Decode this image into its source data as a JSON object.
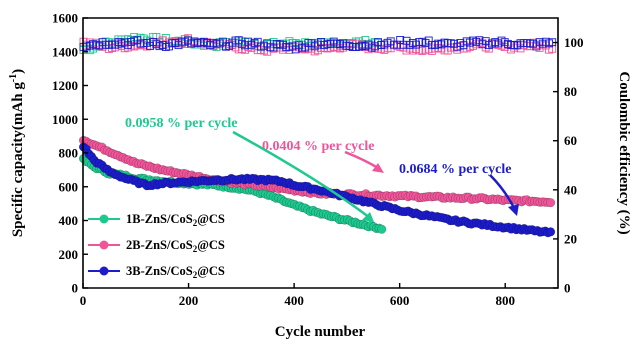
{
  "chart_data": {
    "type": "scatter",
    "xlabel": "Cycle number",
    "ylabel": "Specific capacity(mAh g",
    "ylabel_sup": "-1",
    "ylabel_end": ")",
    "y2label": "Coulombic efficiency (%)",
    "xlim": [
      0,
      900
    ],
    "ylim": [
      0,
      1600
    ],
    "y2lim": [
      0,
      110
    ],
    "x_ticks": [
      "0",
      "200",
      "400",
      "600",
      "800"
    ],
    "y_ticks": [
      "0",
      "200",
      "400",
      "600",
      "800",
      "1000",
      "1200",
      "1400",
      "1600"
    ],
    "y2_ticks": [
      "0",
      "20",
      "40",
      "60",
      "80",
      "100"
    ],
    "grid": false,
    "legend_position": "bottom-left",
    "series": [
      {
        "name": "1B-ZnS/CoS",
        "name_sub": "2",
        "name_end": "@CS",
        "color": "#1ec98f",
        "capacity": [
          [
            1,
            760
          ],
          [
            20,
            720
          ],
          [
            50,
            680
          ],
          [
            80,
            665
          ],
          [
            100,
            650
          ],
          [
            130,
            640
          ],
          [
            160,
            630
          ],
          [
            200,
            620
          ],
          [
            250,
            610
          ],
          [
            300,
            590
          ],
          [
            330,
            570
          ],
          [
            360,
            540
          ],
          [
            400,
            490
          ],
          [
            450,
            440
          ],
          [
            500,
            400
          ],
          [
            540,
            370
          ],
          [
            570,
            350
          ]
        ],
        "efficiency": [
          [
            1,
            97
          ],
          [
            50,
            100
          ],
          [
            100,
            102
          ],
          [
            150,
            101
          ],
          [
            200,
            100
          ],
          [
            250,
            99
          ],
          [
            300,
            100
          ],
          [
            350,
            99
          ],
          [
            400,
            100
          ],
          [
            450,
            99
          ],
          [
            500,
            100
          ],
          [
            570,
            100
          ]
        ]
      },
      {
        "name": "2B-ZnS/CoS",
        "name_sub": "2",
        "name_end": "@CS",
        "color": "#f0559a",
        "capacity": [
          [
            1,
            880
          ],
          [
            20,
            850
          ],
          [
            50,
            810
          ],
          [
            80,
            770
          ],
          [
            100,
            740
          ],
          [
            150,
            700
          ],
          [
            200,
            670
          ],
          [
            250,
            640
          ],
          [
            300,
            620
          ],
          [
            350,
            600
          ],
          [
            400,
            580
          ],
          [
            450,
            560
          ],
          [
            500,
            555
          ],
          [
            550,
            550
          ],
          [
            600,
            545
          ],
          [
            650,
            540
          ],
          [
            700,
            535
          ],
          [
            750,
            530
          ],
          [
            800,
            520
          ],
          [
            850,
            515
          ],
          [
            890,
            510
          ]
        ],
        "efficiency": [
          [
            1,
            100
          ],
          [
            50,
            98
          ],
          [
            100,
            99
          ],
          [
            150,
            100
          ],
          [
            200,
            101
          ],
          [
            250,
            99
          ],
          [
            300,
            98
          ],
          [
            350,
            97
          ],
          [
            400,
            98
          ],
          [
            450,
            97
          ],
          [
            500,
            99
          ],
          [
            550,
            98
          ],
          [
            600,
            98
          ],
          [
            650,
            97
          ],
          [
            700,
            98
          ],
          [
            750,
            99
          ],
          [
            800,
            98
          ],
          [
            850,
            99
          ],
          [
            890,
            98
          ]
        ]
      },
      {
        "name": "3B-ZnS/CoS",
        "name_sub": "2",
        "name_end": "@CS",
        "color": "#1c1ccc",
        "capacity": [
          [
            1,
            840
          ],
          [
            20,
            760
          ],
          [
            50,
            690
          ],
          [
            80,
            650
          ],
          [
            100,
            630
          ],
          [
            120,
            610
          ],
          [
            150,
            620
          ],
          [
            200,
            630
          ],
          [
            250,
            640
          ],
          [
            300,
            645
          ],
          [
            350,
            640
          ],
          [
            380,
            630
          ],
          [
            400,
            610
          ],
          [
            450,
            580
          ],
          [
            500,
            540
          ],
          [
            550,
            500
          ],
          [
            600,
            460
          ],
          [
            650,
            430
          ],
          [
            700,
            400
          ],
          [
            750,
            380
          ],
          [
            800,
            360
          ],
          [
            850,
            340
          ],
          [
            890,
            325
          ]
        ],
        "efficiency": [
          [
            1,
            99
          ],
          [
            50,
            100
          ],
          [
            100,
            100
          ],
          [
            150,
            99
          ],
          [
            200,
            100
          ],
          [
            250,
            99
          ],
          [
            300,
            100
          ],
          [
            350,
            99
          ],
          [
            400,
            98
          ],
          [
            450,
            100
          ],
          [
            500,
            99
          ],
          [
            550,
            99
          ],
          [
            600,
            100
          ],
          [
            650,
            100
          ],
          [
            700,
            99
          ],
          [
            750,
            100
          ],
          [
            800,
            100
          ],
          [
            850,
            99
          ],
          [
            890,
            100
          ]
        ]
      }
    ],
    "annotations": [
      {
        "text": "0.0958 % per cycle",
        "color": "#1ec98f"
      },
      {
        "text": "0.0404 % per cycle",
        "color": "#f0559a"
      },
      {
        "text": "0.0684 % per cycle",
        "color": "#1c1ccc"
      }
    ]
  }
}
